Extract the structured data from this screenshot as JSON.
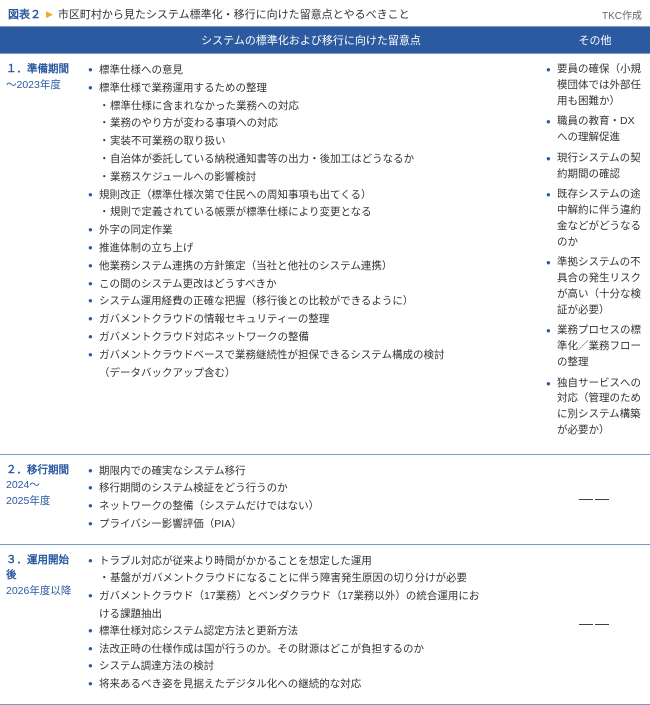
{
  "header": {
    "figure_label": "図表２",
    "figure_title": "市区町村から見たシステム標準化・移行に向けた留意点とやるべきこと",
    "credit": "TKC作成"
  },
  "columns": {
    "phase": "",
    "main": "システムの標準化および移行に向けた留意点",
    "other": "その他"
  },
  "rows": [
    {
      "phase_num": "１．準備期間",
      "phase_sub": "～2023年度",
      "main": [
        {
          "text": "標準仕様への意見"
        },
        {
          "text": "標準仕様で業務運用するための整理",
          "sub": [
            "標準仕様に含まれなかった業務への対応",
            "業務のやり方が変わる事項への対応",
            "実装不可業務の取り扱い",
            "自治体が委託している納税通知書等の出力・後加工はどうなるか",
            "業務スケジュールへの影響検討"
          ]
        },
        {
          "text": "規則改正（標準仕様次第で住民への周知事項も出てくる）",
          "sub": [
            "規則で定義されている帳票が標準仕様により変更となる"
          ]
        },
        {
          "text": "外字の同定作業"
        },
        {
          "text": "推進体制の立ち上げ"
        },
        {
          "text": "他業務システム連携の方針策定（当社と他社のシステム連携）"
        },
        {
          "text": "この間のシステム更改はどうすべきか"
        },
        {
          "text": "システム運用経費の正確な把握（移行後との比較ができるように）"
        },
        {
          "text": "ガバメントクラウドの情報セキュリティーの整理"
        },
        {
          "text": "ガバメントクラウド対応ネットワークの整備"
        },
        {
          "text": "ガバメントクラウドベースで業務継続性が担保できるシステム構成の検討",
          "cont": "（データバックアップ含む）"
        }
      ],
      "other": [
        "要員の確保（小規模団体では外部任用も困難か）",
        "職員の教育・DXへの理解促進",
        "現行システムの契約期間の確認",
        "既存システムの途中解約に伴う違約金などがどうなるのか",
        "準拠システムの不具合の発生リスクが高い（十分な検証が必要）",
        "業務プロセスの標準化／業務フローの整理",
        "独自サービスへの対応（管理のために別システム構築が必要か）"
      ]
    },
    {
      "phase_num": "２．移行期間",
      "phase_sub": "2024～\n2025年度",
      "main": [
        {
          "text": "期限内での確実なシステム移行"
        },
        {
          "text": "移行期間のシステム検証をどう行うのか"
        },
        {
          "text": "ネットワークの整備（システムだけではない）"
        },
        {
          "text": "プライバシー影響評価（PIA）"
        }
      ],
      "other_dash": true
    },
    {
      "phase_num": "３．運用開始後",
      "phase_sub": "2026年度以降",
      "main": [
        {
          "text": "トラブル対応が従来より時間がかかることを想定した運用",
          "sub": [
            "基盤がガバメントクラウドになることに伴う障害発生原因の切り分けが必要"
          ]
        },
        {
          "text": "ガバメントクラウド（17業務）とベンダクラウド（17業務以外）の統合運用にお",
          "cont": "ける課題抽出"
        },
        {
          "text": "標準仕様対応システム認定方法と更新方法"
        },
        {
          "text": "法改正時の仕様作成は国が行うのか。その財源はどこが負担するのか"
        },
        {
          "text": "システム調達方法の検討"
        },
        {
          "text": "将来あるべき姿を見据えたデジタル化への継続的な対応"
        }
      ],
      "other_dash": true
    }
  ]
}
